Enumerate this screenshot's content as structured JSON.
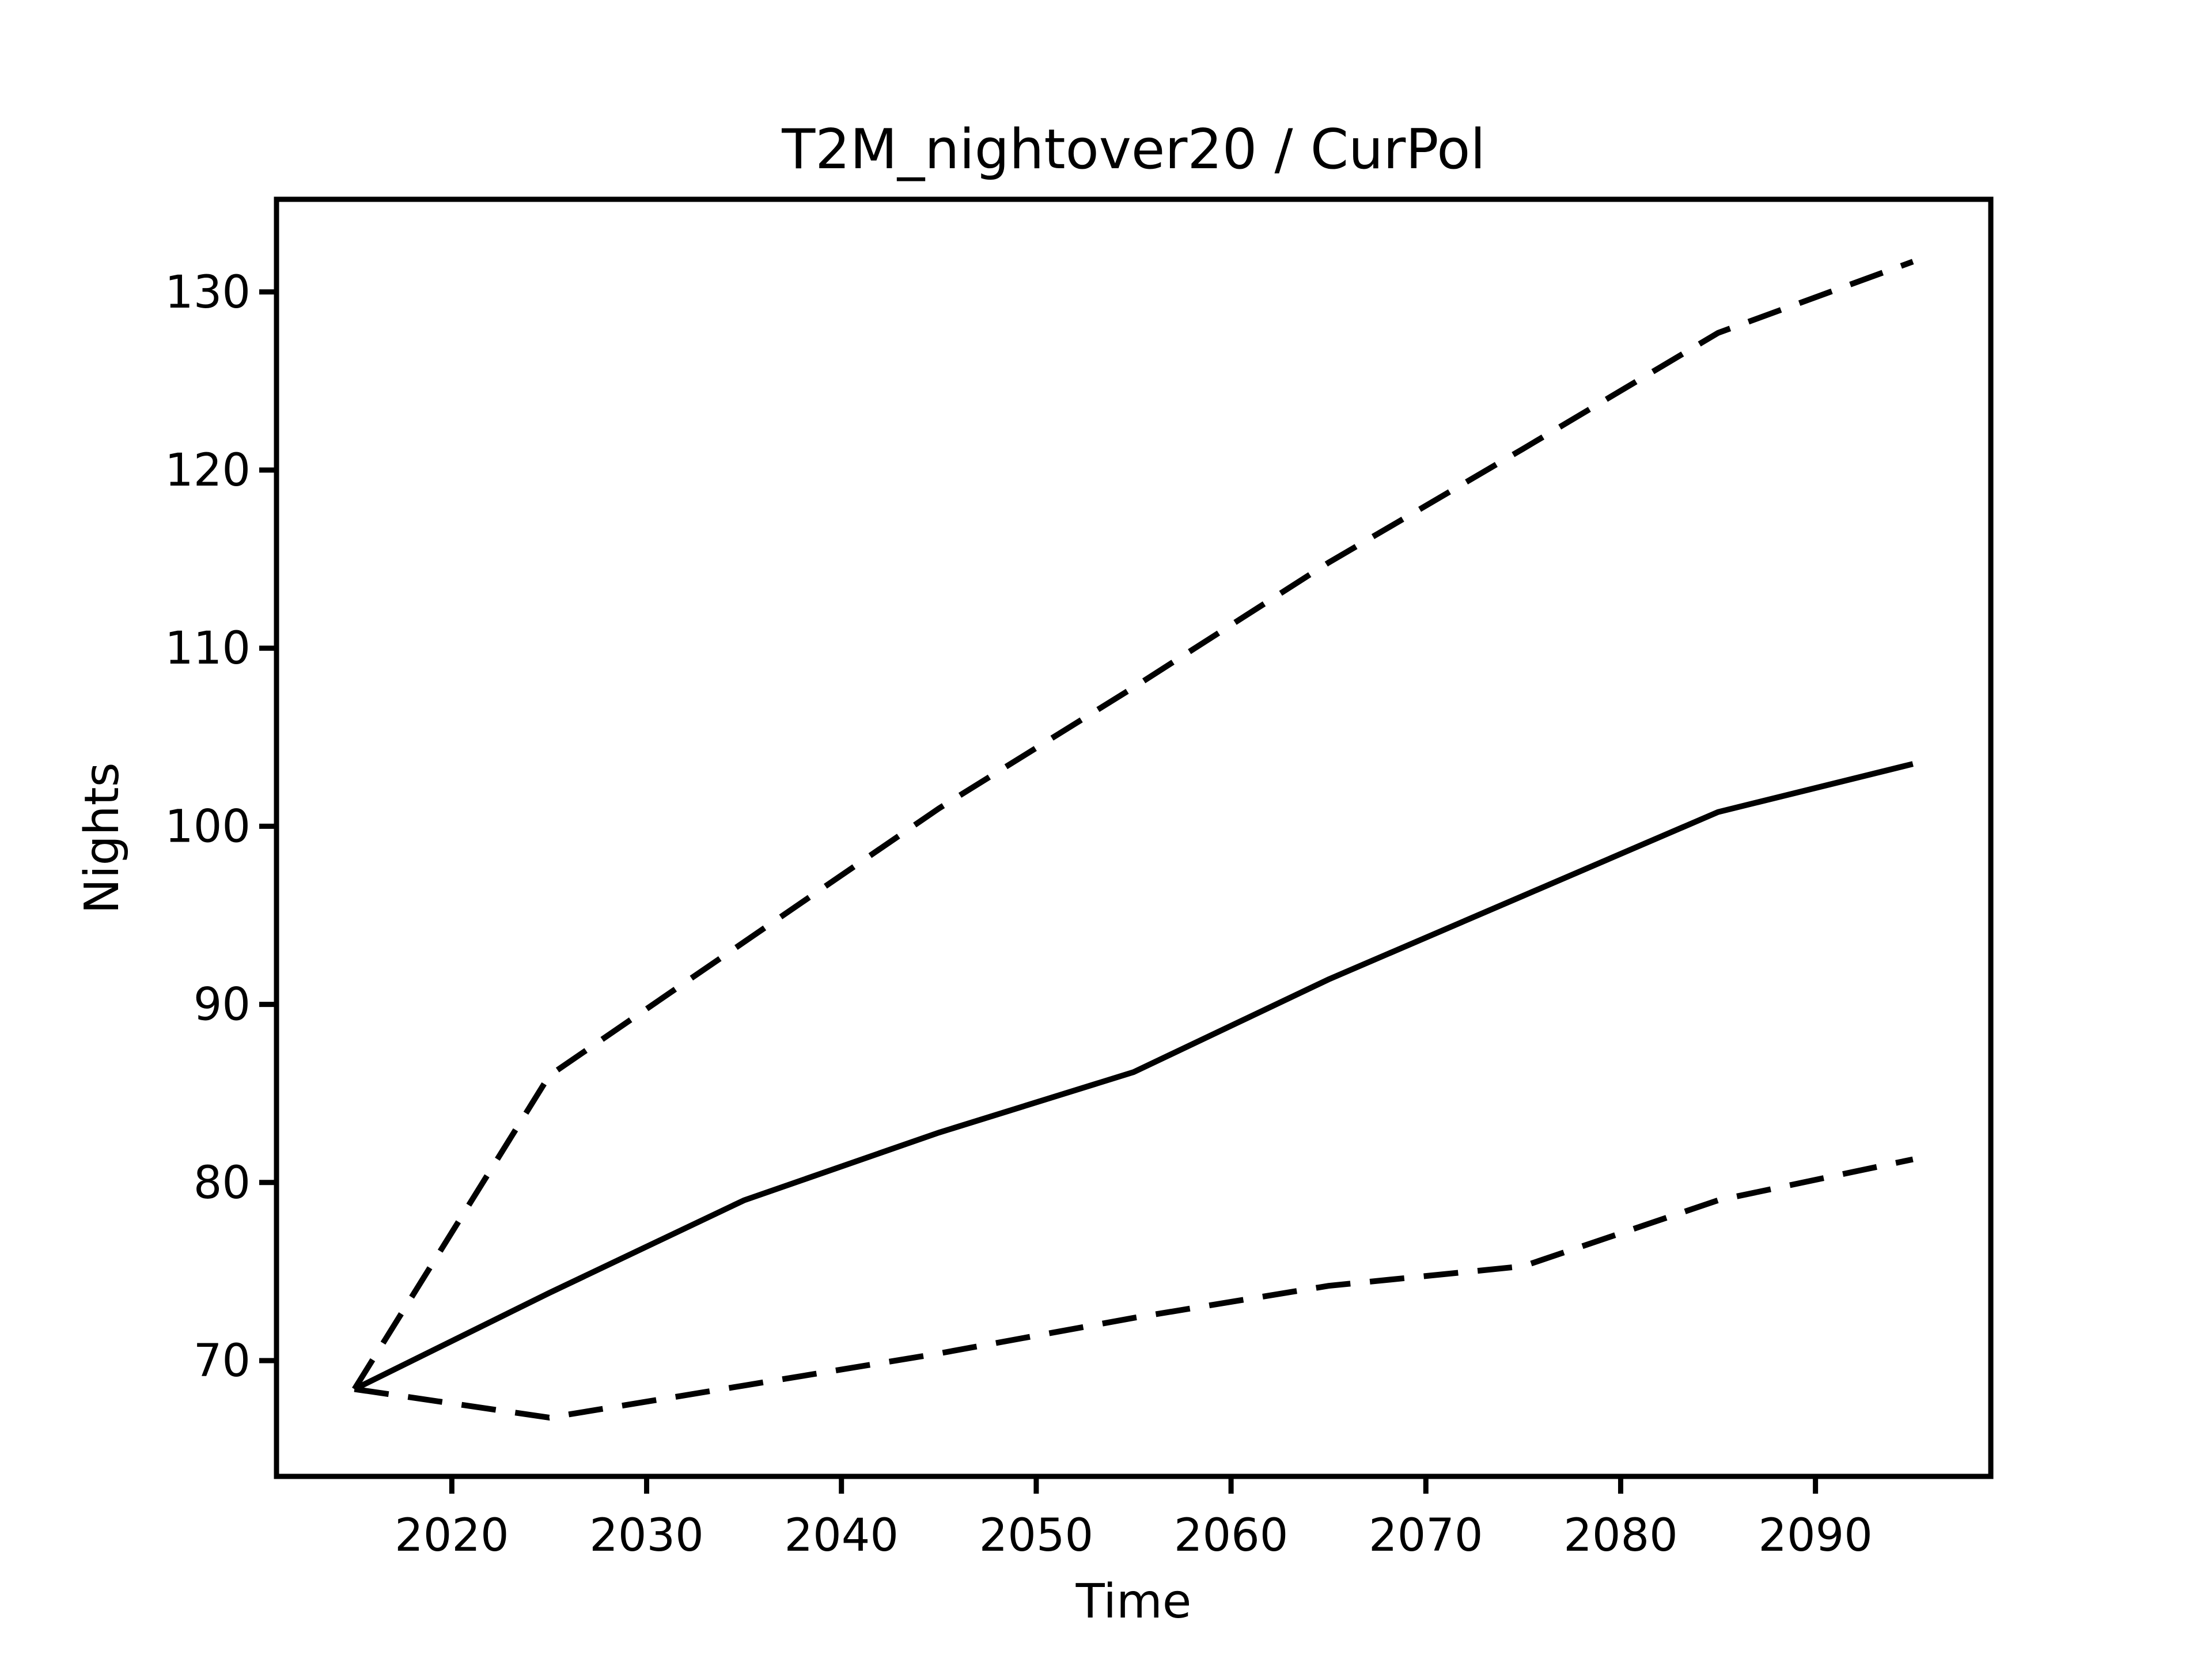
{
  "figure": {
    "background": "#ffffff",
    "line_color": "#000000"
  },
  "chart_data": {
    "type": "line",
    "title": "T2M_nightover20 / CurPol",
    "xlabel": "Time",
    "ylabel": "Nights",
    "x": [
      2015,
      2025,
      2035,
      2045,
      2055,
      2065,
      2075,
      2085,
      2095
    ],
    "series": [
      {
        "name": "upper-bound-dashed",
        "style": "dashed",
        "values": [
          68.4,
          86.0,
          93.5,
          101.0,
          107.8,
          114.8,
          121.2,
          127.7,
          131.7
        ]
      },
      {
        "name": "median-solid",
        "style": "solid",
        "values": [
          68.4,
          73.8,
          79.0,
          82.8,
          86.2,
          91.4,
          96.1,
          100.8,
          103.5
        ]
      },
      {
        "name": "lower-bound-dashed",
        "style": "dashed",
        "values": [
          68.4,
          66.8,
          68.6,
          70.4,
          72.4,
          74.2,
          75.3,
          79.0,
          81.3
        ]
      }
    ],
    "xticks": [
      2020,
      2030,
      2040,
      2050,
      2060,
      2070,
      2080,
      2090
    ],
    "yticks": [
      70,
      80,
      90,
      100,
      110,
      120,
      130
    ],
    "xlim": [
      2011,
      2099
    ],
    "ylim": [
      63.5,
      135.2
    ],
    "grid": false,
    "legend_position": "none"
  }
}
